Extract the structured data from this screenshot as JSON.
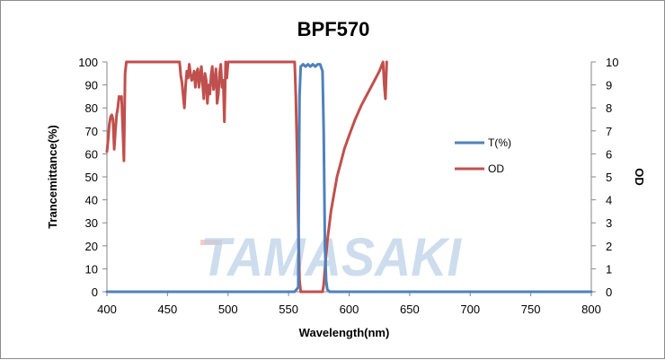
{
  "chart_data": {
    "type": "line",
    "title": "BPF570",
    "xlabel": "Wavelength(nm)",
    "ylabel": "Trancemittance(%)",
    "y2label": "OD",
    "xlim": [
      400,
      800
    ],
    "ylim": [
      0,
      100
    ],
    "y2lim": [
      0,
      10
    ],
    "x_ticks": [
      "400",
      "450",
      "500",
      "550",
      "600",
      "650",
      "700",
      "750",
      "800"
    ],
    "y_ticks": [
      "0",
      "10",
      "20",
      "30",
      "40",
      "50",
      "60",
      "70",
      "80",
      "90",
      "100"
    ],
    "y2_ticks": [
      "0",
      "1",
      "2",
      "3",
      "4",
      "5",
      "6",
      "7",
      "8",
      "9",
      "10"
    ],
    "grid": false,
    "legend_position": "right",
    "watermark": "Tamasaki",
    "series": [
      {
        "name": "T(%)",
        "axis": "left",
        "color": "#4f81bd",
        "x": [
          400,
          555,
          558,
          559,
          560,
          562,
          564,
          566,
          568,
          570,
          572,
          574,
          576,
          578,
          579,
          580,
          581,
          582,
          584,
          800
        ],
        "y": [
          0,
          0,
          2,
          85,
          98,
          99,
          98,
          99,
          98,
          99,
          98,
          99,
          99,
          96,
          70,
          20,
          5,
          1,
          0,
          0
        ]
      },
      {
        "name": "OD",
        "axis": "right",
        "color": "#c0504d",
        "x": [
          400,
          401,
          402,
          403,
          404,
          405,
          406,
          407,
          408,
          409,
          410,
          411,
          412,
          413,
          414,
          415,
          416,
          417,
          418,
          460,
          461,
          462,
          463,
          464,
          465,
          466,
          467,
          468,
          469,
          470,
          471,
          472,
          473,
          474,
          475,
          476,
          477,
          478,
          479,
          480,
          481,
          482,
          483,
          484,
          485,
          486,
          487,
          488,
          489,
          490,
          491,
          492,
          493,
          494,
          495,
          496,
          497,
          498,
          499,
          500,
          555,
          556,
          557,
          558,
          559,
          560,
          578,
          579,
          580,
          582,
          585,
          588,
          590,
          593,
          596,
          600,
          605,
          610,
          615,
          620,
          625,
          628,
          629,
          630,
          631
        ],
        "y": [
          6.1,
          6.6,
          7.3,
          7.6,
          7.7,
          7.5,
          6.2,
          7.0,
          7.7,
          8.0,
          8.5,
          8.4,
          8.5,
          7.2,
          5.7,
          9.5,
          10,
          10,
          10,
          10,
          9.4,
          9.1,
          8.5,
          8.0,
          9.0,
          9.6,
          9.3,
          9.9,
          9.5,
          9.2,
          9.3,
          9.6,
          8.9,
          9.5,
          9.7,
          8.9,
          9.4,
          9.8,
          9.0,
          8.4,
          9.5,
          9.2,
          8.2,
          9.0,
          8.6,
          9.4,
          9.8,
          8.8,
          9.1,
          9.7,
          8.2,
          8.6,
          9.5,
          9.9,
          8.9,
          9.2,
          7.4,
          10,
          9.3,
          10,
          10,
          8.5,
          6.0,
          3.0,
          0.5,
          0,
          0,
          0.3,
          1.0,
          2.2,
          3.5,
          4.4,
          5.0,
          5.6,
          6.2,
          6.8,
          7.5,
          8.1,
          8.6,
          9.1,
          9.6,
          10,
          9.0,
          8.4,
          10
        ]
      }
    ]
  }
}
